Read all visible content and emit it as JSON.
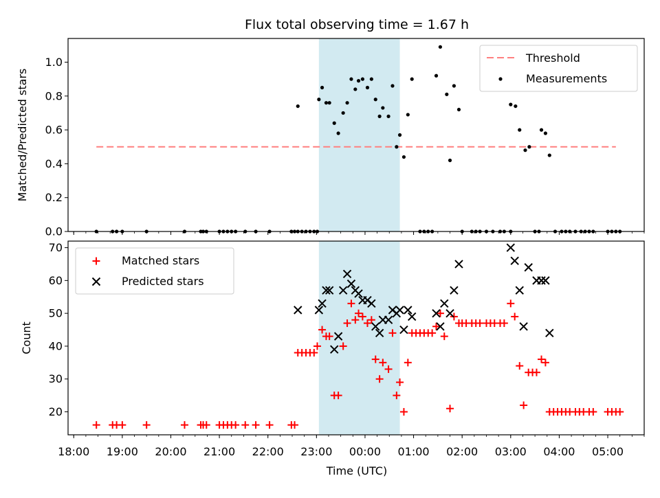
{
  "chart_data": [
    {
      "type": "scatter",
      "title": "Flux total observing time = 1.67 h",
      "ylabel": "Matched/Predicted stars",
      "ylim": [
        0,
        1.14
      ],
      "yticks": [
        0.0,
        0.2,
        0.4,
        0.6,
        0.8,
        1.0
      ],
      "ytick_labels": [
        "0.0",
        "0.2",
        "0.4",
        "0.6",
        "0.8",
        "1.0"
      ],
      "legend_position": "top-right",
      "shaded_interval": [
        "23:03",
        "00:43"
      ],
      "threshold": {
        "name": "Threshold",
        "y": 0.5,
        "x_start": "18:28",
        "x_end": "05:10",
        "color": "#ff7f7f"
      },
      "series": [
        {
          "name": "Measurements",
          "color": "#000000",
          "points": [
            [
              "18:28",
              0
            ],
            [
              "18:48",
              0
            ],
            [
              "18:53",
              0
            ],
            [
              "19:00",
              0
            ],
            [
              "19:30",
              0
            ],
            [
              "20:17",
              0
            ],
            [
              "20:37",
              0
            ],
            [
              "20:40",
              0
            ],
            [
              "20:44",
              0
            ],
            [
              "21:00",
              0
            ],
            [
              "21:05",
              0
            ],
            [
              "21:10",
              0
            ],
            [
              "21:15",
              0
            ],
            [
              "21:20",
              0
            ],
            [
              "21:32",
              0
            ],
            [
              "21:45",
              0
            ],
            [
              "22:02",
              0
            ],
            [
              "22:29",
              0
            ],
            [
              "22:33",
              0
            ],
            [
              "22:37",
              0
            ],
            [
              "22:42",
              0
            ],
            [
              "22:47",
              0
            ],
            [
              "22:52",
              0
            ],
            [
              "22:57",
              0
            ],
            [
              "23:01",
              0
            ],
            [
              "22:37",
              0.74
            ],
            [
              "23:03",
              0.78
            ],
            [
              "23:07",
              0.85
            ],
            [
              "23:12",
              0.76
            ],
            [
              "23:16",
              0.76
            ],
            [
              "23:22",
              0.64
            ],
            [
              "23:27",
              0.58
            ],
            [
              "23:33",
              0.7
            ],
            [
              "23:38",
              0.76
            ],
            [
              "23:43",
              0.9
            ],
            [
              "23:48",
              0.84
            ],
            [
              "23:52",
              0.89
            ],
            [
              "23:57",
              0.9
            ],
            [
              "00:03",
              0.85
            ],
            [
              "00:08",
              0.9
            ],
            [
              "00:13",
              0.78
            ],
            [
              "00:18",
              0.68
            ],
            [
              "00:22",
              0.73
            ],
            [
              "00:29",
              0.68
            ],
            [
              "00:34",
              0.86
            ],
            [
              "00:39",
              0.5
            ],
            [
              "00:43",
              0.57
            ],
            [
              "00:48",
              0.44
            ],
            [
              "00:53",
              0.69
            ],
            [
              "00:58",
              0.9
            ],
            [
              "01:08",
              0
            ],
            [
              "01:13",
              0
            ],
            [
              "01:18",
              0
            ],
            [
              "01:23",
              0
            ],
            [
              "01:28",
              0.92
            ],
            [
              "01:33",
              1.09
            ],
            [
              "01:41",
              0.81
            ],
            [
              "01:45",
              0.42
            ],
            [
              "01:50",
              0.86
            ],
            [
              "01:56",
              0.72
            ],
            [
              "02:00",
              0
            ],
            [
              "02:12",
              0
            ],
            [
              "02:17",
              0
            ],
            [
              "02:22",
              0
            ],
            [
              "02:30",
              0
            ],
            [
              "02:38",
              0
            ],
            [
              "02:47",
              0
            ],
            [
              "02:52",
              0
            ],
            [
              "03:00",
              0
            ],
            [
              "03:00",
              0.75
            ],
            [
              "03:06",
              0.74
            ],
            [
              "03:11",
              0.6
            ],
            [
              "03:18",
              0.48
            ],
            [
              "03:23",
              0.5
            ],
            [
              "03:30",
              0
            ],
            [
              "03:35",
              0
            ],
            [
              "03:38",
              0.6
            ],
            [
              "03:43",
              0.58
            ],
            [
              "03:48",
              0.45
            ],
            [
              "03:55",
              0
            ],
            [
              "04:03",
              0
            ],
            [
              "04:08",
              0
            ],
            [
              "04:13",
              0
            ],
            [
              "04:20",
              0
            ],
            [
              "04:27",
              0
            ],
            [
              "04:32",
              0
            ],
            [
              "04:37",
              0
            ],
            [
              "04:42",
              0
            ],
            [
              "05:00",
              0
            ],
            [
              "05:05",
              0
            ],
            [
              "05:10",
              0
            ],
            [
              "05:15",
              0
            ]
          ]
        }
      ]
    },
    {
      "type": "scatter",
      "xlabel": "Time (UTC)",
      "ylabel": "Count",
      "ylim": [
        13,
        72
      ],
      "yticks": [
        20,
        30,
        40,
        50,
        60,
        70
      ],
      "ytick_labels": [
        "20",
        "30",
        "40",
        "50",
        "60",
        "70"
      ],
      "xticks": [
        "18:00",
        "19:00",
        "20:00",
        "21:00",
        "22:00",
        "23:00",
        "00:00",
        "01:00",
        "02:00",
        "03:00",
        "04:00",
        "05:00"
      ],
      "xtick_labels": [
        "18:00",
        "19:00",
        "20:00",
        "21:00",
        "22:00",
        "23:00",
        "00:00",
        "01:00",
        "02:00",
        "03:00",
        "04:00",
        "05:00"
      ],
      "legend_position": "top-left",
      "shaded_interval": [
        "23:03",
        "00:43"
      ],
      "series": [
        {
          "name": "Matched stars",
          "marker": "plus",
          "color": "#ff0000",
          "points": [
            [
              "18:28",
              16
            ],
            [
              "18:48",
              16
            ],
            [
              "18:53",
              16
            ],
            [
              "19:00",
              16
            ],
            [
              "19:30",
              16
            ],
            [
              "20:17",
              16
            ],
            [
              "20:37",
              16
            ],
            [
              "20:40",
              16
            ],
            [
              "20:44",
              16
            ],
            [
              "21:00",
              16
            ],
            [
              "21:05",
              16
            ],
            [
              "21:10",
              16
            ],
            [
              "21:15",
              16
            ],
            [
              "21:20",
              16
            ],
            [
              "21:32",
              16
            ],
            [
              "21:45",
              16
            ],
            [
              "22:02",
              16
            ],
            [
              "22:29",
              16
            ],
            [
              "22:33",
              16
            ],
            [
              "22:37",
              38
            ],
            [
              "22:42",
              38
            ],
            [
              "22:47",
              38
            ],
            [
              "22:52",
              38
            ],
            [
              "22:57",
              38
            ],
            [
              "23:01",
              40
            ],
            [
              "23:07",
              45
            ],
            [
              "23:12",
              43
            ],
            [
              "23:16",
              43
            ],
            [
              "23:22",
              25
            ],
            [
              "23:27",
              25
            ],
            [
              "23:33",
              40
            ],
            [
              "23:38",
              47
            ],
            [
              "23:43",
              53
            ],
            [
              "23:48",
              48
            ],
            [
              "23:52",
              50
            ],
            [
              "23:57",
              49
            ],
            [
              "00:03",
              47
            ],
            [
              "00:08",
              48
            ],
            [
              "00:13",
              36
            ],
            [
              "00:18",
              30
            ],
            [
              "00:22",
              35
            ],
            [
              "00:29",
              33
            ],
            [
              "00:34",
              44
            ],
            [
              "00:39",
              25
            ],
            [
              "00:43",
              29
            ],
            [
              "00:48",
              20
            ],
            [
              "00:53",
              35
            ],
            [
              "00:58",
              44
            ],
            [
              "01:03",
              44
            ],
            [
              "01:08",
              44
            ],
            [
              "01:13",
              44
            ],
            [
              "01:18",
              44
            ],
            [
              "01:23",
              44
            ],
            [
              "01:28",
              46
            ],
            [
              "01:33",
              50
            ],
            [
              "01:38",
              43
            ],
            [
              "01:45",
              21
            ],
            [
              "01:50",
              49
            ],
            [
              "01:56",
              47
            ],
            [
              "02:00",
              47
            ],
            [
              "02:05",
              47
            ],
            [
              "02:12",
              47
            ],
            [
              "02:17",
              47
            ],
            [
              "02:22",
              47
            ],
            [
              "02:30",
              47
            ],
            [
              "02:35",
              47
            ],
            [
              "02:40",
              47
            ],
            [
              "02:47",
              47
            ],
            [
              "02:52",
              47
            ],
            [
              "03:00",
              53
            ],
            [
              "03:05",
              49
            ],
            [
              "03:11",
              34
            ],
            [
              "03:16",
              22
            ],
            [
              "03:22",
              32
            ],
            [
              "03:27",
              32
            ],
            [
              "03:32",
              32
            ],
            [
              "03:38",
              36
            ],
            [
              "03:43",
              35
            ],
            [
              "03:48",
              20
            ],
            [
              "03:53",
              20
            ],
            [
              "03:58",
              20
            ],
            [
              "04:03",
              20
            ],
            [
              "04:08",
              20
            ],
            [
              "04:13",
              20
            ],
            [
              "04:20",
              20
            ],
            [
              "04:25",
              20
            ],
            [
              "04:30",
              20
            ],
            [
              "04:37",
              20
            ],
            [
              "04:42",
              20
            ],
            [
              "05:00",
              20
            ],
            [
              "05:05",
              20
            ],
            [
              "05:10",
              20
            ],
            [
              "05:15",
              20
            ]
          ]
        },
        {
          "name": "Predicted stars",
          "marker": "x",
          "color": "#000000",
          "points": [
            [
              "22:37",
              51
            ],
            [
              "23:03",
              51
            ],
            [
              "23:07",
              53
            ],
            [
              "23:12",
              57
            ],
            [
              "23:16",
              57
            ],
            [
              "23:22",
              39
            ],
            [
              "23:27",
              43
            ],
            [
              "23:33",
              57
            ],
            [
              "23:38",
              62
            ],
            [
              "23:43",
              59
            ],
            [
              "23:48",
              57
            ],
            [
              "23:52",
              56
            ],
            [
              "23:57",
              54
            ],
            [
              "00:03",
              54
            ],
            [
              "00:08",
              53
            ],
            [
              "00:13",
              46
            ],
            [
              "00:18",
              44
            ],
            [
              "00:22",
              48
            ],
            [
              "00:29",
              48
            ],
            [
              "00:34",
              51
            ],
            [
              "00:39",
              50
            ],
            [
              "00:43",
              51
            ],
            [
              "00:48",
              45
            ],
            [
              "00:53",
              51
            ],
            [
              "00:58",
              49
            ],
            [
              "01:28",
              50
            ],
            [
              "01:33",
              46
            ],
            [
              "01:38",
              53
            ],
            [
              "01:45",
              50
            ],
            [
              "01:50",
              57
            ],
            [
              "01:56",
              65
            ],
            [
              "03:00",
              70
            ],
            [
              "03:05",
              66
            ],
            [
              "03:11",
              57
            ],
            [
              "03:16",
              46
            ],
            [
              "03:22",
              64
            ],
            [
              "03:32",
              60
            ],
            [
              "03:38",
              60
            ],
            [
              "03:43",
              60
            ],
            [
              "03:48",
              44
            ]
          ]
        }
      ]
    }
  ]
}
